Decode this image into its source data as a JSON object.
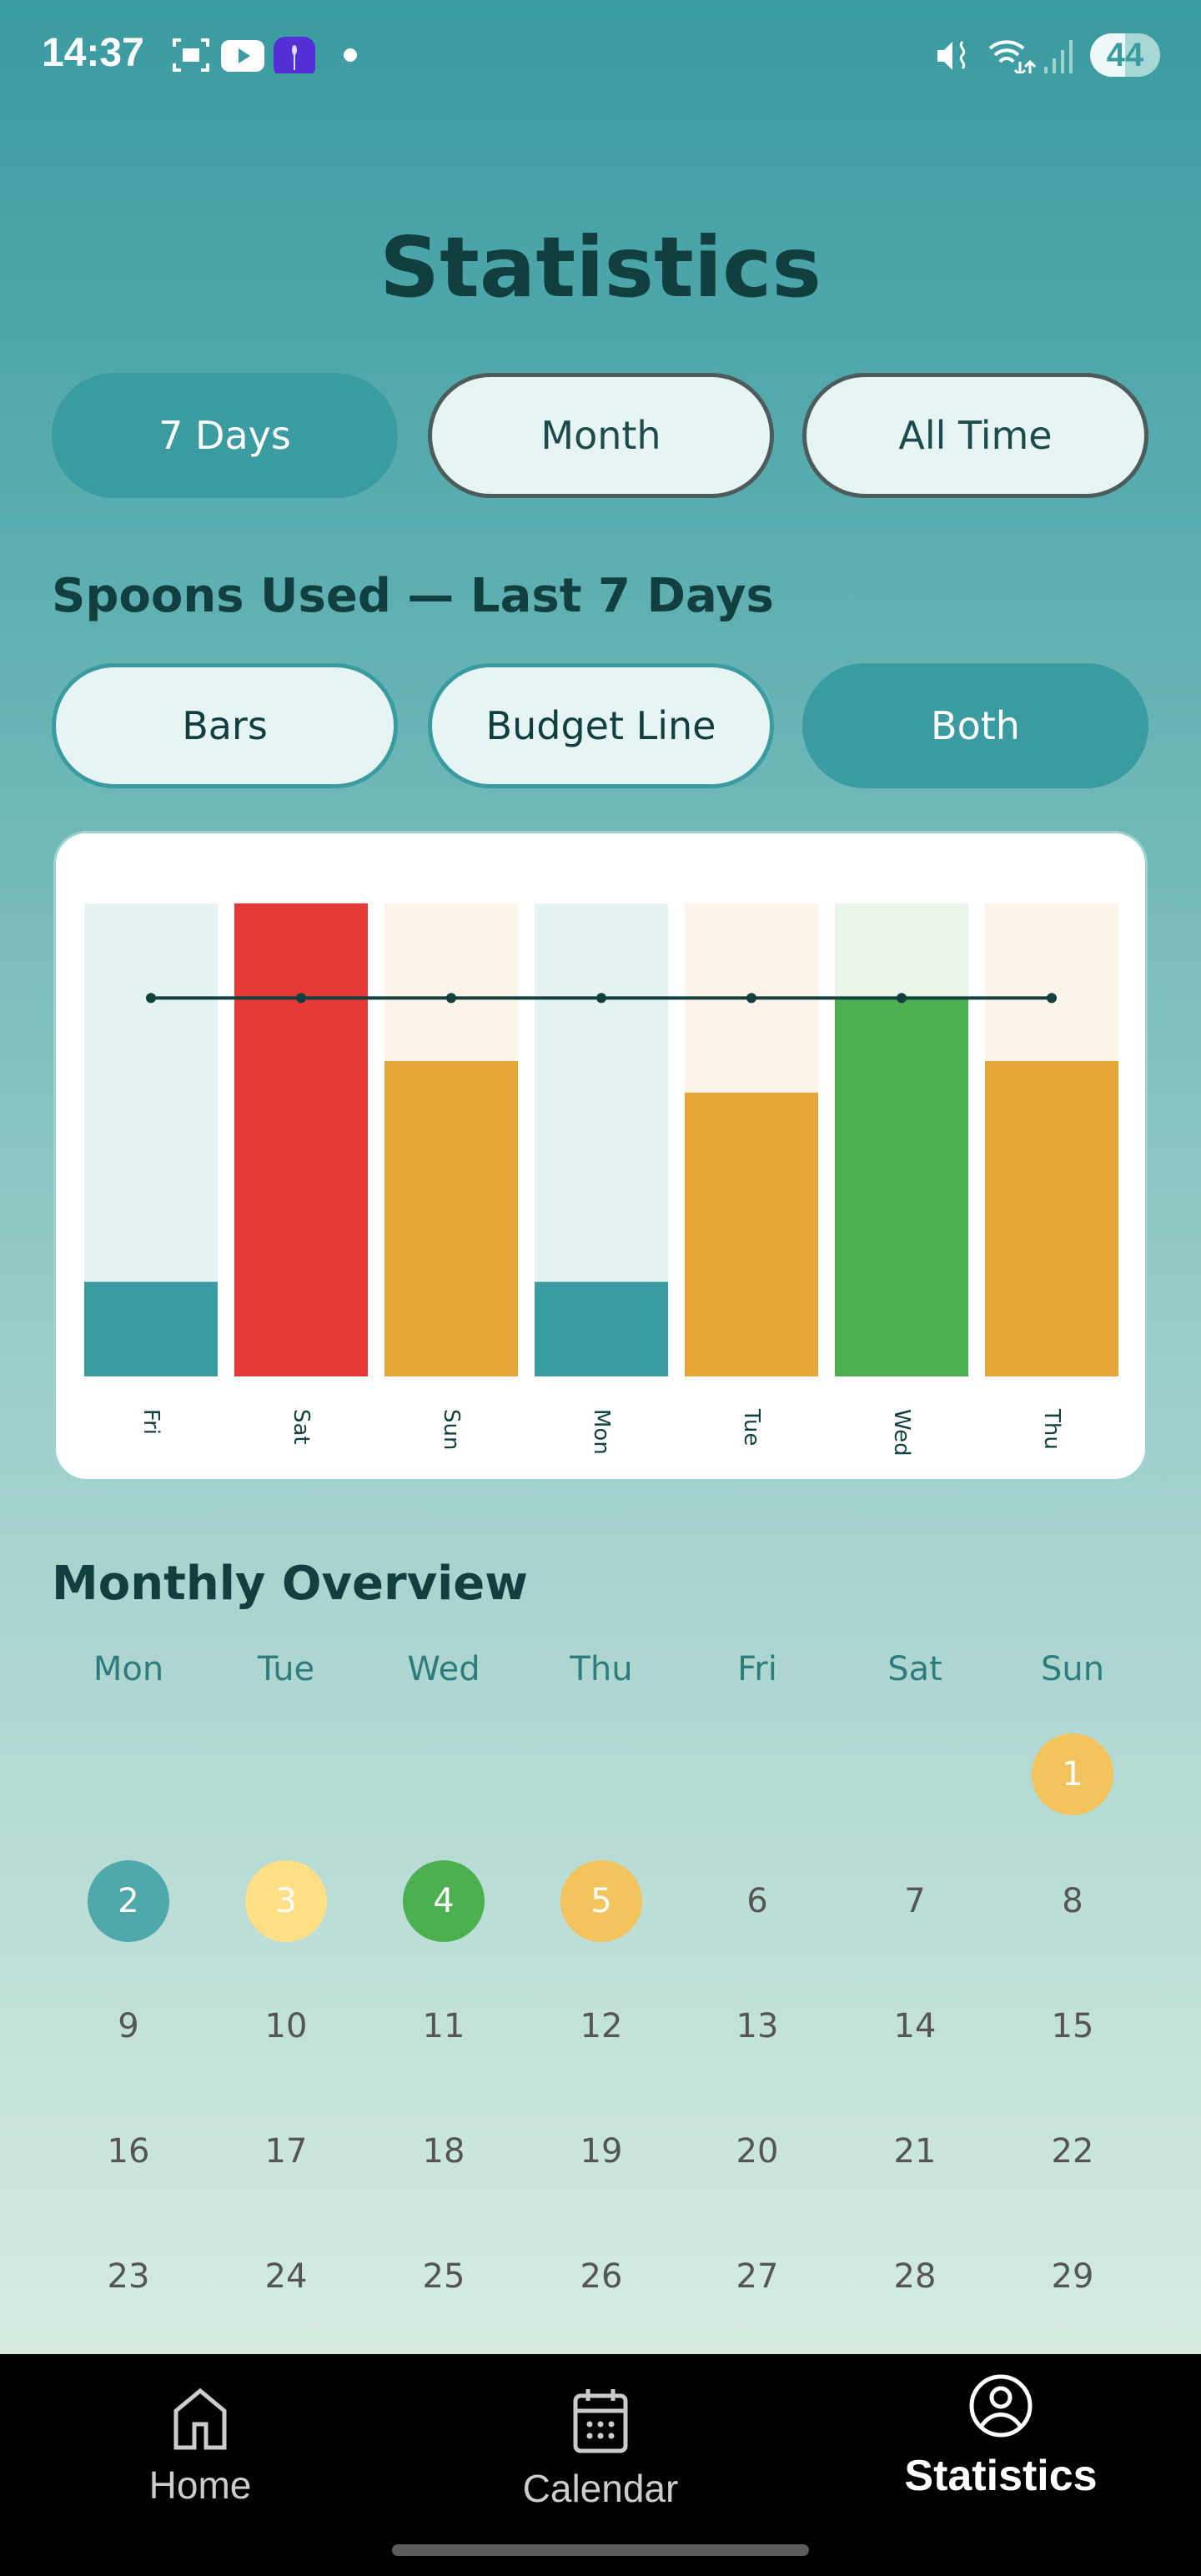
{
  "status_bar": {
    "time": "14:37",
    "battery": "44",
    "icons": [
      "screenshot-icon",
      "youtube-icon",
      "spoon-app-icon",
      "dot-icon",
      "mute-icon",
      "wifi-icon",
      "signal-icon",
      "battery-icon"
    ]
  },
  "header": {
    "title": "Statistics"
  },
  "range_tabs": [
    {
      "label": "7 Days",
      "active": true
    },
    {
      "label": "Month",
      "active": false
    },
    {
      "label": "All Time",
      "active": false
    }
  ],
  "chart_section": {
    "title": "Spoons Used — Last 7 Days"
  },
  "chart_modes": [
    {
      "label": "Bars",
      "active": false
    },
    {
      "label": "Budget Line",
      "active": false
    },
    {
      "label": "Both",
      "active": true
    }
  ],
  "chart_data": {
    "type": "bar",
    "categories": [
      "Fri",
      "Sat",
      "Sun",
      "Mon",
      "Tue",
      "Wed",
      "Thu"
    ],
    "values": [
      3,
      15,
      10,
      3,
      9,
      12,
      10
    ],
    "budget": [
      12,
      12,
      12,
      12,
      12,
      12,
      12
    ],
    "ylim": [
      0,
      15
    ],
    "bar_colors": [
      "#3a9ba0",
      "#e53935",
      "#e6a737",
      "#3a9ba0",
      "#e6a737",
      "#4caf50",
      "#e6a737"
    ],
    "track_colors": [
      "#e5f3f2",
      "#e53935",
      "#fcf4e8",
      "#e5f3f2",
      "#fcf4e8",
      "#e8f5e8",
      "#fcf4e8"
    ],
    "line_color": "#123f40",
    "grid": false,
    "legend": "none"
  },
  "monthly": {
    "title": "Monthly Overview",
    "weekdays": [
      "Mon",
      "Tue",
      "Wed",
      "Thu",
      "Fri",
      "Sat",
      "Sun"
    ],
    "start_offset": 6,
    "days": [
      {
        "n": "1",
        "color": "#f3c35e"
      },
      {
        "n": "2",
        "color": "#4fa8aa"
      },
      {
        "n": "3",
        "color": "#ffdf85"
      },
      {
        "n": "4",
        "color": "#4caf50"
      },
      {
        "n": "5",
        "color": "#f3c35e"
      },
      {
        "n": "6"
      },
      {
        "n": "7"
      },
      {
        "n": "8"
      },
      {
        "n": "9"
      },
      {
        "n": "10"
      },
      {
        "n": "11"
      },
      {
        "n": "12"
      },
      {
        "n": "13"
      },
      {
        "n": "14"
      },
      {
        "n": "15"
      },
      {
        "n": "16"
      },
      {
        "n": "17"
      },
      {
        "n": "18"
      },
      {
        "n": "19"
      },
      {
        "n": "20"
      },
      {
        "n": "21"
      },
      {
        "n": "22"
      },
      {
        "n": "23"
      },
      {
        "n": "24"
      },
      {
        "n": "25"
      },
      {
        "n": "26"
      },
      {
        "n": "27"
      },
      {
        "n": "28"
      },
      {
        "n": "29"
      }
    ]
  },
  "nav": [
    {
      "label": "Home",
      "icon": "home-icon"
    },
    {
      "label": "Calendar",
      "icon": "calendar-icon"
    },
    {
      "label": "Statistics",
      "icon": "account-circle-icon",
      "active": true
    }
  ]
}
